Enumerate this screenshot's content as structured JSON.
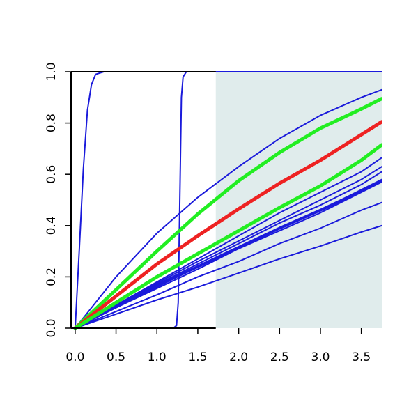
{
  "chart_data": {
    "type": "line",
    "title": "",
    "xlabel": "",
    "ylabel": "",
    "xlim": [
      -0.05,
      3.75
    ],
    "ylim": [
      0,
      1
    ],
    "grid": false,
    "x_ticks": [
      {
        "value": 0.0,
        "label": "0.0"
      },
      {
        "value": 0.5,
        "label": "0.5"
      },
      {
        "value": 1.0,
        "label": "1.0"
      },
      {
        "value": 1.5,
        "label": "1.5"
      },
      {
        "value": 2.0,
        "label": "2.0"
      },
      {
        "value": 2.5,
        "label": "2.5"
      },
      {
        "value": 3.0,
        "label": "3.0"
      },
      {
        "value": 3.5,
        "label": "3.5"
      }
    ],
    "y_ticks": [
      {
        "value": 0.0,
        "label": "0.0"
      },
      {
        "value": 0.2,
        "label": "0.2"
      },
      {
        "value": 0.4,
        "label": "0.4"
      },
      {
        "value": 0.6,
        "label": "0.6"
      },
      {
        "value": 0.8,
        "label": "0.8"
      },
      {
        "value": 1.0,
        "label": "1.0"
      }
    ],
    "shaded_region": {
      "x_from": 1.72,
      "x_to": 3.75,
      "color": "#e0ecec"
    },
    "colors": {
      "blue": "#1a1adb",
      "green": "#22ee22",
      "red": "#ee2222",
      "axis": "#000000"
    },
    "series": [
      {
        "color": "blue",
        "width": 2,
        "values": [
          [
            0,
            0
          ],
          [
            0.05,
            0.3
          ],
          [
            0.1,
            0.62
          ],
          [
            0.15,
            0.85
          ],
          [
            0.2,
            0.95
          ],
          [
            0.25,
            0.99
          ],
          [
            0.35,
            1.0
          ],
          [
            3.75,
            1.0
          ]
        ]
      },
      {
        "color": "blue",
        "width": 2,
        "values": [
          [
            0,
            0
          ],
          [
            1.2,
            0
          ],
          [
            1.24,
            0.01
          ],
          [
            1.26,
            0.1
          ],
          [
            1.28,
            0.5
          ],
          [
            1.3,
            0.9
          ],
          [
            1.32,
            0.98
          ],
          [
            1.36,
            1.0
          ],
          [
            3.75,
            1.0
          ]
        ]
      },
      {
        "color": "blue",
        "width": 2,
        "values": [
          [
            0,
            0
          ],
          [
            0.5,
            0.2
          ],
          [
            1.0,
            0.37
          ],
          [
            1.5,
            0.51
          ],
          [
            2.0,
            0.63
          ],
          [
            2.5,
            0.74
          ],
          [
            3.0,
            0.83
          ],
          [
            3.5,
            0.9
          ],
          [
            3.75,
            0.93
          ]
        ]
      },
      {
        "color": "blue",
        "width": 2,
        "values": [
          [
            0,
            0
          ],
          [
            0.5,
            0.09
          ],
          [
            1.0,
            0.18
          ],
          [
            1.5,
            0.27
          ],
          [
            2.0,
            0.36
          ],
          [
            2.5,
            0.45
          ],
          [
            3.0,
            0.53
          ],
          [
            3.5,
            0.61
          ],
          [
            3.75,
            0.665
          ]
        ]
      },
      {
        "color": "blue",
        "width": 2,
        "values": [
          [
            0,
            0
          ],
          [
            0.5,
            0.09
          ],
          [
            1.0,
            0.175
          ],
          [
            1.5,
            0.26
          ],
          [
            2.0,
            0.34
          ],
          [
            2.5,
            0.42
          ],
          [
            3.0,
            0.5
          ],
          [
            3.5,
            0.58
          ],
          [
            3.75,
            0.63
          ]
        ]
      },
      {
        "color": "blue",
        "width": 2,
        "values": [
          [
            0,
            0
          ],
          [
            0.5,
            0.085
          ],
          [
            1.0,
            0.17
          ],
          [
            1.5,
            0.25
          ],
          [
            2.0,
            0.33
          ],
          [
            2.5,
            0.41
          ],
          [
            3.0,
            0.48
          ],
          [
            3.5,
            0.56
          ],
          [
            3.75,
            0.61
          ]
        ]
      },
      {
        "color": "blue",
        "width": 2,
        "values": [
          [
            0,
            0
          ],
          [
            0.5,
            0.08
          ],
          [
            1.0,
            0.16
          ],
          [
            1.5,
            0.24
          ],
          [
            2.0,
            0.31
          ],
          [
            2.5,
            0.39
          ],
          [
            3.0,
            0.46
          ],
          [
            3.5,
            0.54
          ],
          [
            3.75,
            0.58
          ]
        ]
      },
      {
        "color": "blue",
        "width": 2,
        "values": [
          [
            0,
            0
          ],
          [
            0.5,
            0.08
          ],
          [
            1.0,
            0.155
          ],
          [
            1.5,
            0.23
          ],
          [
            2.0,
            0.31
          ],
          [
            2.5,
            0.38
          ],
          [
            3.0,
            0.45
          ],
          [
            3.5,
            0.53
          ],
          [
            3.75,
            0.57
          ]
        ]
      },
      {
        "color": "blue",
        "width": 4,
        "values": [
          [
            0,
            0
          ],
          [
            0.5,
            0.085
          ],
          [
            1.0,
            0.165
          ],
          [
            1.5,
            0.24
          ],
          [
            2.0,
            0.315
          ],
          [
            2.5,
            0.39
          ],
          [
            3.0,
            0.46
          ],
          [
            3.5,
            0.535
          ],
          [
            3.75,
            0.575
          ]
        ]
      },
      {
        "color": "blue",
        "width": 2,
        "values": [
          [
            0,
            0
          ],
          [
            0.5,
            0.065
          ],
          [
            1.0,
            0.13
          ],
          [
            1.5,
            0.2
          ],
          [
            2.0,
            0.26
          ],
          [
            2.5,
            0.33
          ],
          [
            3.0,
            0.39
          ],
          [
            3.5,
            0.46
          ],
          [
            3.75,
            0.49
          ]
        ]
      },
      {
        "color": "blue",
        "width": 2,
        "values": [
          [
            0,
            0
          ],
          [
            0.5,
            0.055
          ],
          [
            1.0,
            0.11
          ],
          [
            1.5,
            0.16
          ],
          [
            2.0,
            0.215
          ],
          [
            2.5,
            0.27
          ],
          [
            3.0,
            0.32
          ],
          [
            3.5,
            0.375
          ],
          [
            3.75,
            0.4
          ]
        ]
      },
      {
        "color": "green",
        "width": 5,
        "values": [
          [
            0,
            0
          ],
          [
            0.5,
            0.15
          ],
          [
            1.0,
            0.3
          ],
          [
            1.5,
            0.445
          ],
          [
            2.0,
            0.575
          ],
          [
            2.5,
            0.685
          ],
          [
            3.0,
            0.78
          ],
          [
            3.5,
            0.855
          ],
          [
            3.75,
            0.895
          ]
        ]
      },
      {
        "color": "red",
        "width": 5,
        "values": [
          [
            0,
            0
          ],
          [
            0.5,
            0.125
          ],
          [
            1.0,
            0.25
          ],
          [
            1.5,
            0.36
          ],
          [
            2.0,
            0.465
          ],
          [
            2.5,
            0.565
          ],
          [
            3.0,
            0.655
          ],
          [
            3.5,
            0.755
          ],
          [
            3.75,
            0.805
          ]
        ]
      },
      {
        "color": "green",
        "width": 5,
        "values": [
          [
            0,
            0
          ],
          [
            0.5,
            0.1
          ],
          [
            1.0,
            0.2
          ],
          [
            1.5,
            0.29
          ],
          [
            2.0,
            0.38
          ],
          [
            2.5,
            0.47
          ],
          [
            3.0,
            0.555
          ],
          [
            3.5,
            0.655
          ],
          [
            3.75,
            0.715
          ]
        ]
      }
    ]
  }
}
